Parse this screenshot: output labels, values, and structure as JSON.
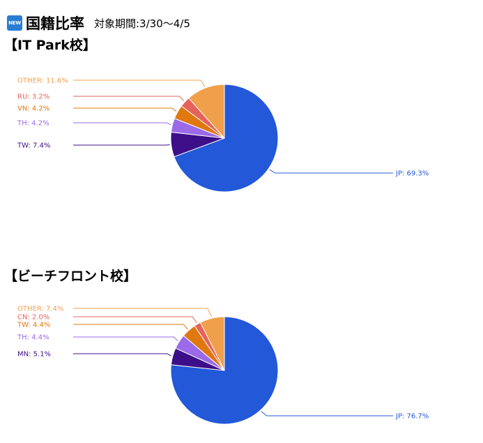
{
  "header": {
    "badge": "NEW",
    "title": "国籍比率",
    "period": "対象期間:3/30〜4/5"
  },
  "colors": {
    "JP": "#2358d8",
    "TW": "#3c0f88",
    "TH": "#9a6ae8",
    "VN": "#e07810",
    "RU": "#e5635a",
    "CN": "#e5635a",
    "MN": "#3c0f88",
    "OTHER": "#f0a04a",
    "TW2": "#e07810",
    "TH2": "#9a6ae8"
  },
  "chart_data": [
    {
      "type": "pie",
      "title": "【IT Park校】",
      "slices": [
        {
          "label": "JP",
          "value": 69.3,
          "display": "JP: 69.3%",
          "color": "#2358d8"
        },
        {
          "label": "TW",
          "value": 7.4,
          "display": "TW: 7.4%",
          "color": "#3c0f88"
        },
        {
          "label": "TH",
          "value": 4.2,
          "display": "TH: 4.2%",
          "color": "#9a6ae8"
        },
        {
          "label": "VN",
          "value": 4.2,
          "display": "VN: 4.2%",
          "color": "#e07810"
        },
        {
          "label": "RU",
          "value": 3.2,
          "display": "RU: 3.2%",
          "color": "#e5635a"
        },
        {
          "label": "OTHER",
          "value": 11.6,
          "display": "OTHER: 11.6%",
          "color": "#f0a04a"
        }
      ]
    },
    {
      "type": "pie",
      "title": "【ビーチフロント校】",
      "slices": [
        {
          "label": "JP",
          "value": 76.7,
          "display": "JP: 76.7%",
          "color": "#2358d8"
        },
        {
          "label": "MN",
          "value": 5.1,
          "display": "MN: 5.1%",
          "color": "#3c0f88"
        },
        {
          "label": "TH",
          "value": 4.4,
          "display": "TH: 4.4%",
          "color": "#9a6ae8"
        },
        {
          "label": "TW",
          "value": 4.4,
          "display": "TW: 4.4%",
          "color": "#e07810"
        },
        {
          "label": "CN",
          "value": 2.0,
          "display": "CN: 2.0%",
          "color": "#e5635a"
        },
        {
          "label": "OTHER",
          "value": 7.4,
          "display": "OTHER: 7.4%",
          "color": "#f0a04a"
        }
      ]
    }
  ]
}
